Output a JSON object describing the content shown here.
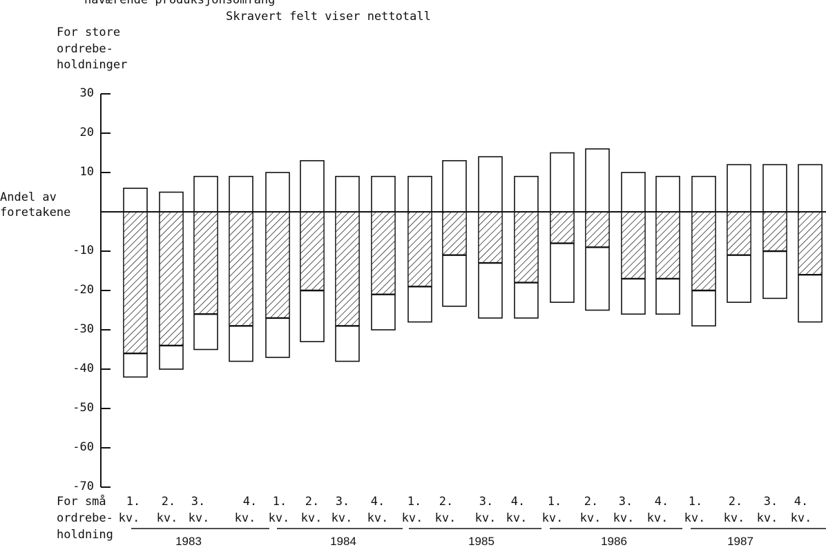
{
  "header": {
    "line1": "nåværende produksjonsomfang",
    "line2": "Skravert felt viser nettotall"
  },
  "yaxis": {
    "top_label": [
      "For store",
      "ordrebe-",
      "holdninger"
    ],
    "zero_label": [
      "Andel av",
      "foretakene"
    ],
    "bottom_label": [
      "For små",
      "ordrebe-",
      "holdning"
    ]
  },
  "chart_data": {
    "type": "bar",
    "title": "Skravert felt viser nettotall",
    "ylim": [
      -70,
      30
    ],
    "yticks": [
      30,
      20,
      10,
      0,
      -10,
      -20,
      -30,
      -40,
      -50,
      -60,
      -70
    ],
    "ytick_labels": [
      "30",
      "20",
      "10",
      "",
      "-10",
      "-20",
      "-30",
      "-40",
      "-50",
      "-60",
      "-70"
    ],
    "years": [
      "1983",
      "1984",
      "1985",
      "1986",
      "1987"
    ],
    "quarters_per_year": 4,
    "categories": [
      "1983 1. kv.",
      "1983 2. kv.",
      "1983 3. kv.",
      "1983 4. kv.",
      "1984 1. kv.",
      "1984 2. kv.",
      "1984 3. kv.",
      "1984 4. kv.",
      "1985 1. kv.",
      "1985 2. kv.",
      "1985 3. kv.",
      "1985 4. kv.",
      "1986 1. kv.",
      "1986 2. kv.",
      "1986 3. kv.",
      "1986 4. kv.",
      "1987 1. kv.",
      "1987 2. kv.",
      "1987 3. kv.",
      "1987 4. kv."
    ],
    "quarter_top": [
      "1.",
      "2.",
      "3.",
      "4.",
      "1.",
      "2.",
      "3.",
      "4.",
      "1.",
      "2.",
      "3.",
      "4.",
      "1.",
      "2.",
      "3.",
      "4.",
      "1.",
      "2.",
      "3.",
      "4."
    ],
    "quarter_bottom": [
      "kv.",
      "kv.",
      "kv.",
      "kv.",
      "kv.",
      "kv.",
      "kv.",
      "kv.",
      "kv.",
      "kv.",
      "kv.",
      "kv.",
      "kv.",
      "kv.",
      "kv.",
      "kv.",
      "kv.",
      "kv.",
      "kv.",
      "kv."
    ],
    "series": [
      {
        "values": [
          6,
          5,
          9,
          9,
          10,
          13,
          9,
          9,
          9,
          13,
          14,
          9,
          15,
          16,
          10,
          9,
          9,
          12,
          12,
          12
        ]
      },
      {
        "values": [
          -42,
          -40,
          -35,
          -38,
          -37,
          -33,
          -38,
          -30,
          -28,
          -24,
          -27,
          -27,
          -23,
          -25,
          -26,
          -26,
          -29,
          -23,
          -22,
          -28
        ]
      },
      {
        "values": [
          -36,
          -34,
          -26,
          -29,
          -27,
          -20,
          -29,
          -21,
          -19,
          -11,
          -13,
          -18,
          -8,
          -9,
          -17,
          -17,
          -20,
          -11,
          -10,
          -16
        ]
      }
    ]
  }
}
